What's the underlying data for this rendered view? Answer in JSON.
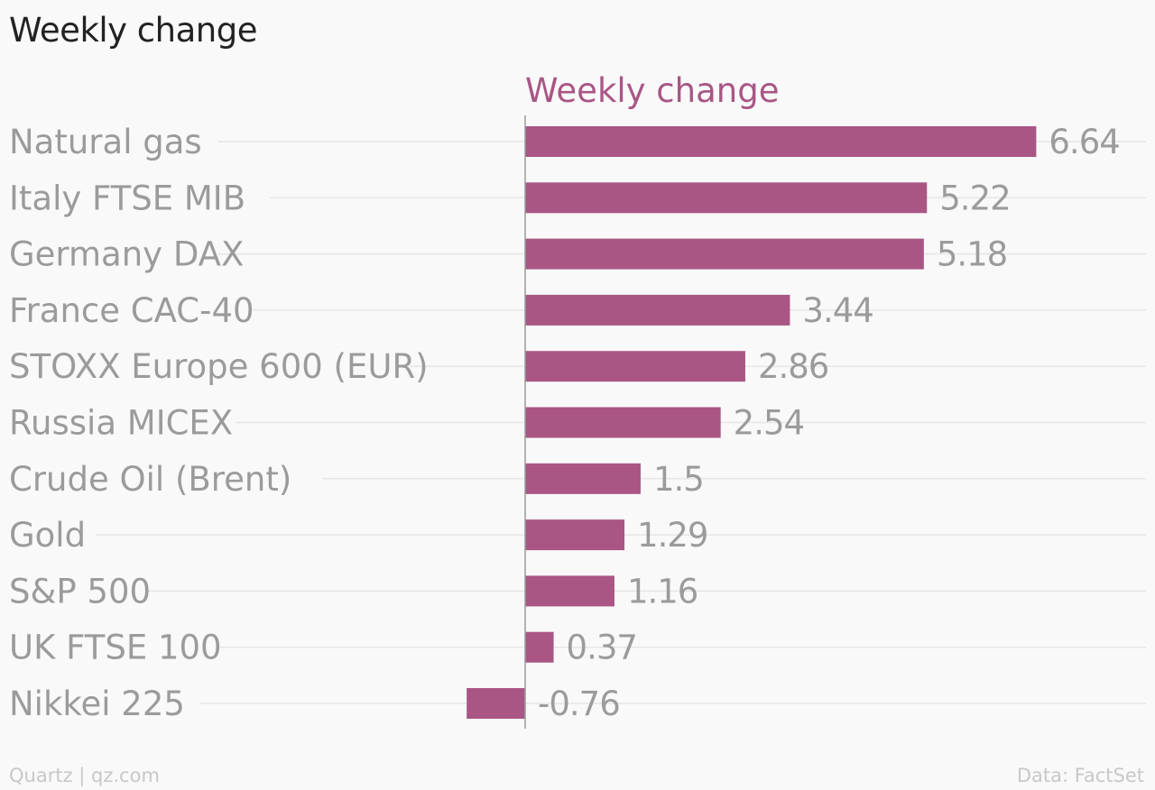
{
  "title": "Weekly change",
  "footer": {
    "source_left": "Quartz | qz.com",
    "source_right": "Data: FactSet"
  },
  "colors": {
    "bar": "#a95685",
    "series_label": "#a95685",
    "category_text": "#9b9b9b",
    "value_text": "#9b9b9b",
    "gridline": "#e6e6e6",
    "axis": "#9a9a9a"
  },
  "chart_data": {
    "type": "bar",
    "orientation": "horizontal",
    "series": [
      {
        "name": "Weekly change",
        "values": [
          6.64,
          5.22,
          5.18,
          3.44,
          2.86,
          2.54,
          1.5,
          1.29,
          1.16,
          0.37,
          -0.76
        ]
      }
    ],
    "categories": [
      "Natural gas",
      "Italy FTSE MIB",
      "Germany DAX",
      "France CAC-40",
      "STOXX Europe 600 (EUR)",
      "Russia MICEX",
      "Crude Oil (Brent)",
      "Gold",
      "S&P 500",
      "UK FTSE 100",
      "Nikkei 225"
    ],
    "value_labels": [
      "6.64",
      "5.22",
      "5.18",
      "3.44",
      "2.86",
      "2.54",
      "1.5",
      "1.29",
      "1.16",
      "0.37",
      "-0.76"
    ],
    "title": "Weekly change",
    "xlabel": "",
    "ylabel": "",
    "xlim": [
      -0.76,
      6.64
    ],
    "grid": true,
    "legend": "none"
  }
}
